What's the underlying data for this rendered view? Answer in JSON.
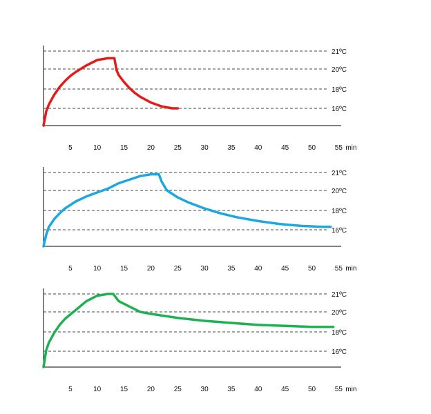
{
  "chart_data": [
    {
      "type": "line",
      "x_unit_label": "min",
      "x_ticks": [
        5,
        10,
        15,
        20,
        25,
        30,
        35,
        40,
        45,
        50,
        55
      ],
      "y_ticks": [
        {
          "value": 21,
          "label": "21ºC"
        },
        {
          "value": 20,
          "label": "20ºC"
        },
        {
          "value": 18,
          "label": "18ºC"
        },
        {
          "value": 16,
          "label": "16ºC"
        }
      ],
      "xlim": [
        0,
        55
      ],
      "ylim": [
        14.3,
        21.6
      ],
      "grid": "horizontal dashed",
      "series": [
        {
          "color": "#e31b1b",
          "x": [
            0,
            0.5,
            1,
            2,
            3,
            4,
            5,
            6,
            8,
            10,
            12,
            13.2,
            13.6,
            14,
            15,
            16,
            17,
            18,
            19,
            20,
            21,
            22,
            23,
            24,
            25
          ],
          "y": [
            14.3,
            15.7,
            16.4,
            17.4,
            18.2,
            18.8,
            19.3,
            19.7,
            20.2,
            20.5,
            20.6,
            20.6,
            19.9,
            19.4,
            18.7,
            18.1,
            17.6,
            17.2,
            16.9,
            16.6,
            16.4,
            16.2,
            16.1,
            16.0,
            16.0
          ]
        }
      ]
    },
    {
      "type": "line",
      "x_unit_label": "min",
      "x_ticks": [
        5,
        10,
        15,
        20,
        25,
        30,
        35,
        40,
        45,
        50,
        55
      ],
      "y_ticks": [
        {
          "value": 21,
          "label": "21ºC"
        },
        {
          "value": 20,
          "label": "20ºC"
        },
        {
          "value": 18,
          "label": "18ºC"
        },
        {
          "value": 16,
          "label": "16ºC"
        }
      ],
      "xlim": [
        0,
        55
      ],
      "ylim": [
        14.3,
        21.6
      ],
      "grid": "horizontal dashed",
      "series": [
        {
          "color": "#1ba8e0",
          "x": [
            0,
            0.5,
            1,
            2,
            3,
            4,
            6,
            8,
            10,
            12,
            14,
            16,
            18,
            20,
            21.5,
            22,
            23,
            25,
            27,
            30,
            33,
            36,
            40,
            44,
            48,
            52,
            53.5
          ],
          "y": [
            14.3,
            15.5,
            16.3,
            17.1,
            17.7,
            18.2,
            18.9,
            19.4,
            19.8,
            20.1,
            20.4,
            20.6,
            20.8,
            20.9,
            20.9,
            20.5,
            20.0,
            19.3,
            18.8,
            18.2,
            17.7,
            17.3,
            16.9,
            16.6,
            16.4,
            16.3,
            16.3
          ]
        }
      ]
    },
    {
      "type": "line",
      "x_unit_label": "min",
      "x_ticks": [
        5,
        10,
        15,
        20,
        25,
        30,
        35,
        40,
        45,
        50,
        55
      ],
      "y_ticks": [
        {
          "value": 21,
          "label": "21ºC"
        },
        {
          "value": 20,
          "label": "20ºC"
        },
        {
          "value": 18,
          "label": "18ºC"
        },
        {
          "value": 16,
          "label": "16ºC"
        }
      ],
      "xlim": [
        0,
        55
      ],
      "ylim": [
        14.3,
        21.6
      ],
      "grid": "horizontal dashed",
      "series": [
        {
          "color": "#1db152",
          "x": [
            0,
            0.5,
            1,
            2,
            3,
            4,
            6,
            8,
            10,
            12,
            13,
            14,
            16,
            18,
            20,
            25,
            30,
            35,
            40,
            45,
            50,
            54
          ],
          "y": [
            14.3,
            16.1,
            16.9,
            17.9,
            18.7,
            19.3,
            20.1,
            20.6,
            20.9,
            21.0,
            21.0,
            20.6,
            20.3,
            20.0,
            19.8,
            19.4,
            19.1,
            18.9,
            18.7,
            18.6,
            18.5,
            18.5
          ]
        }
      ]
    }
  ]
}
